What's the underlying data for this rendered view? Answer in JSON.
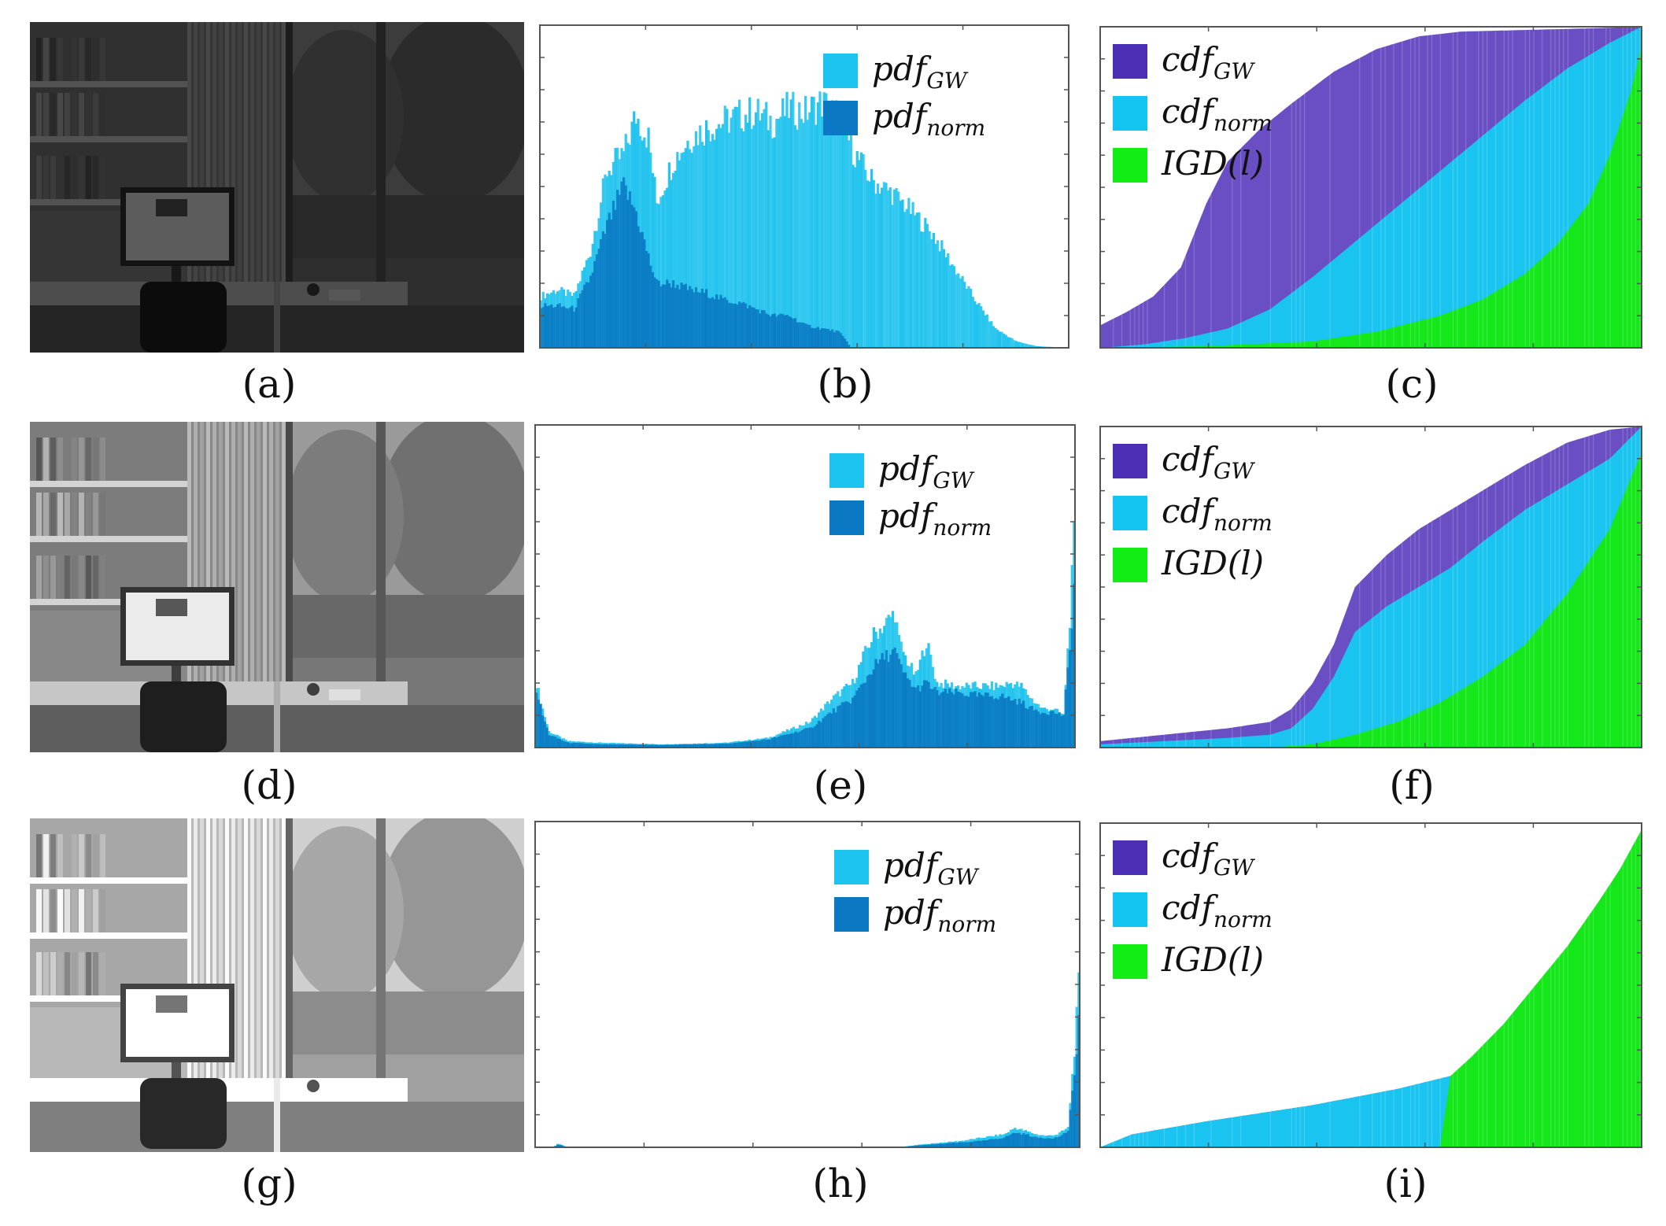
{
  "figure": {
    "panel_labels": [
      "(a)",
      "(b)",
      "(c)",
      "(d)",
      "(e)",
      "(f)",
      "(g)",
      "(h)",
      "(i)"
    ],
    "legend_pdf": [
      {
        "main": "pdf",
        "sub": "GW",
        "color": "#1ec4f0"
      },
      {
        "main": "pdf",
        "sub": "norm",
        "color": "#0a78c2"
      }
    ],
    "legend_cdf": [
      {
        "main": "cdf",
        "sub": "GW",
        "color": "#4b2eb4"
      },
      {
        "main": "cdf",
        "sub": "norm",
        "color": "#14c5f2"
      },
      {
        "main": "IGD(l)",
        "sub": "",
        "color": "#12ee14"
      }
    ],
    "colors": {
      "pdf_gw": "#20c3ee",
      "pdf_norm": "#0b7cc4",
      "cdf_gw": "#6a4fc4",
      "cdf_norm": "#19c4f0",
      "igd": "#14e81a",
      "axis": "#555555"
    },
    "photos": [
      {
        "name": "dark-photo",
        "brightness": 0.28
      },
      {
        "name": "normal-photo",
        "brightness": 0.72
      },
      {
        "name": "bright-photo",
        "brightness": 0.97
      }
    ]
  },
  "chart_data": [
    {
      "type": "bar",
      "panel": "(b)",
      "xlim": [
        0,
        255
      ],
      "ylim": [
        0,
        1
      ],
      "series": [
        {
          "name": "pdf_GW",
          "x": [
            0,
            8,
            16,
            24,
            32,
            40,
            46,
            52,
            56,
            64,
            72,
            80,
            88,
            96,
            104,
            112,
            120,
            128,
            136,
            144,
            152,
            160,
            170,
            180,
            190,
            200,
            210,
            220,
            230,
            240,
            255
          ],
          "values": [
            0.16,
            0.18,
            0.16,
            0.3,
            0.55,
            0.6,
            0.72,
            0.65,
            0.45,
            0.58,
            0.65,
            0.68,
            0.7,
            0.72,
            0.73,
            0.7,
            0.74,
            0.73,
            0.76,
            0.72,
            0.6,
            0.52,
            0.48,
            0.42,
            0.35,
            0.25,
            0.15,
            0.06,
            0.02,
            0.005,
            0.0
          ]
        },
        {
          "name": "pdf_norm",
          "x": [
            0,
            8,
            16,
            24,
            32,
            40,
            46,
            52,
            56,
            64,
            72,
            80,
            88,
            96,
            104,
            112,
            120,
            128,
            136,
            144,
            148,
            150,
            255
          ],
          "values": [
            0.13,
            0.13,
            0.12,
            0.22,
            0.38,
            0.5,
            0.42,
            0.28,
            0.2,
            0.2,
            0.18,
            0.17,
            0.15,
            0.14,
            0.12,
            0.1,
            0.1,
            0.07,
            0.06,
            0.05,
            0.02,
            0.0,
            0.0
          ]
        }
      ]
    },
    {
      "type": "area",
      "panel": "(c)",
      "xlim": [
        0,
        255
      ],
      "ylim": [
        0,
        1
      ],
      "series": [
        {
          "name": "cdf_GW",
          "x": [
            0,
            12,
            25,
            38,
            50,
            60,
            75,
            90,
            110,
            130,
            150,
            170,
            200,
            230,
            255
          ],
          "values": [
            0.07,
            0.11,
            0.16,
            0.25,
            0.45,
            0.58,
            0.68,
            0.76,
            0.86,
            0.93,
            0.97,
            0.985,
            0.99,
            0.995,
            1.0
          ]
        },
        {
          "name": "cdf_norm",
          "x": [
            0,
            20,
            40,
            60,
            80,
            100,
            120,
            140,
            160,
            180,
            200,
            220,
            240,
            255
          ],
          "values": [
            0.0,
            0.01,
            0.03,
            0.06,
            0.12,
            0.22,
            0.33,
            0.44,
            0.55,
            0.66,
            0.77,
            0.87,
            0.95,
            1.0
          ]
        },
        {
          "name": "IGD(l)",
          "x": [
            0,
            50,
            100,
            130,
            160,
            180,
            200,
            215,
            230,
            240,
            250,
            255
          ],
          "values": [
            0.0,
            0.005,
            0.02,
            0.05,
            0.1,
            0.15,
            0.23,
            0.32,
            0.45,
            0.6,
            0.8,
            0.94
          ]
        }
      ]
    },
    {
      "type": "bar",
      "panel": "(e)",
      "xlim": [
        0,
        255
      ],
      "ylim": [
        0,
        1
      ],
      "series": [
        {
          "name": "pdf_GW",
          "x": [
            0,
            3,
            6,
            15,
            30,
            60,
            90,
            110,
            130,
            140,
            150,
            155,
            160,
            165,
            170,
            172,
            175,
            180,
            185,
            190,
            200,
            210,
            220,
            225,
            230,
            235,
            240,
            245,
            250,
            253,
            255
          ],
          "values": [
            0.2,
            0.12,
            0.05,
            0.02,
            0.015,
            0.01,
            0.015,
            0.03,
            0.08,
            0.15,
            0.2,
            0.28,
            0.35,
            0.38,
            0.42,
            0.33,
            0.28,
            0.22,
            0.33,
            0.2,
            0.19,
            0.19,
            0.19,
            0.2,
            0.19,
            0.15,
            0.12,
            0.12,
            0.1,
            0.4,
            0.65
          ]
        },
        {
          "name": "pdf_norm",
          "x": [
            0,
            3,
            6,
            15,
            30,
            60,
            90,
            110,
            130,
            140,
            150,
            155,
            160,
            165,
            170,
            172,
            175,
            180,
            185,
            190,
            200,
            210,
            220,
            225,
            230,
            235,
            240,
            245,
            250,
            253,
            255
          ],
          "values": [
            0.18,
            0.1,
            0.04,
            0.015,
            0.01,
            0.008,
            0.012,
            0.025,
            0.06,
            0.11,
            0.15,
            0.2,
            0.25,
            0.28,
            0.3,
            0.26,
            0.22,
            0.18,
            0.2,
            0.17,
            0.17,
            0.16,
            0.16,
            0.15,
            0.14,
            0.12,
            0.11,
            0.11,
            0.1,
            0.3,
            0.5
          ]
        }
      ]
    },
    {
      "type": "area",
      "panel": "(f)",
      "xlim": [
        0,
        255
      ],
      "ylim": [
        0,
        1
      ],
      "series": [
        {
          "name": "cdf_GW",
          "x": [
            0,
            30,
            60,
            80,
            90,
            100,
            110,
            120,
            135,
            150,
            165,
            180,
            200,
            220,
            240,
            255
          ],
          "values": [
            0.02,
            0.04,
            0.06,
            0.08,
            0.12,
            0.2,
            0.32,
            0.5,
            0.6,
            0.68,
            0.74,
            0.8,
            0.88,
            0.95,
            0.99,
            1.0
          ]
        },
        {
          "name": "cdf_norm",
          "x": [
            0,
            30,
            60,
            80,
            90,
            100,
            110,
            120,
            135,
            150,
            165,
            180,
            200,
            220,
            240,
            255
          ],
          "values": [
            0.01,
            0.02,
            0.03,
            0.04,
            0.06,
            0.12,
            0.22,
            0.36,
            0.44,
            0.5,
            0.56,
            0.64,
            0.74,
            0.82,
            0.9,
            1.0
          ]
        },
        {
          "name": "IGD(l)",
          "x": [
            0,
            80,
            100,
            120,
            140,
            160,
            180,
            200,
            220,
            240,
            255
          ],
          "values": [
            0.0,
            0.0,
            0.01,
            0.04,
            0.08,
            0.14,
            0.22,
            0.32,
            0.48,
            0.68,
            0.92
          ]
        }
      ]
    },
    {
      "type": "bar",
      "panel": "(h)",
      "xlim": [
        0,
        255
      ],
      "ylim": [
        0,
        1
      ],
      "series": [
        {
          "name": "pdf_GW",
          "x": [
            0,
            8,
            10,
            12,
            14,
            20,
            170,
            180,
            200,
            210,
            220,
            225,
            230,
            235,
            240,
            245,
            250,
            253,
            255
          ],
          "values": [
            0.0,
            0.0,
            0.01,
            0.008,
            0.0,
            0.0,
            0.0,
            0.008,
            0.02,
            0.03,
            0.04,
            0.06,
            0.05,
            0.04,
            0.035,
            0.04,
            0.06,
            0.3,
            0.5
          ]
        },
        {
          "name": "pdf_norm",
          "x": [
            0,
            8,
            10,
            12,
            14,
            20,
            170,
            180,
            200,
            210,
            220,
            225,
            230,
            235,
            240,
            245,
            250,
            253,
            255
          ],
          "values": [
            0.0,
            0.0,
            0.008,
            0.006,
            0.0,
            0.0,
            0.0,
            0.006,
            0.015,
            0.02,
            0.03,
            0.045,
            0.04,
            0.03,
            0.028,
            0.03,
            0.05,
            0.22,
            0.4
          ]
        }
      ]
    },
    {
      "type": "area",
      "panel": "(i)",
      "xlim": [
        0,
        255
      ],
      "ylim": [
        0,
        1
      ],
      "series": [
        {
          "name": "cdf_GW",
          "x": [
            0,
            15,
            50,
            100,
            140,
            165,
            190,
            210,
            230,
            240,
            250,
            255
          ],
          "values": [
            0.0,
            0.04,
            0.08,
            0.13,
            0.18,
            0.22,
            0.32,
            0.44,
            0.58,
            0.64,
            0.68,
            0.7
          ]
        },
        {
          "name": "cdf_norm",
          "x": [
            0,
            15,
            50,
            100,
            140,
            165,
            190,
            210,
            230,
            240,
            250,
            255
          ],
          "values": [
            0.0,
            0.04,
            0.08,
            0.13,
            0.18,
            0.22,
            0.32,
            0.44,
            0.56,
            0.6,
            0.64,
            0.68
          ]
        },
        {
          "name": "IGD(l)",
          "x": [
            0,
            160,
            165,
            175,
            190,
            205,
            220,
            235,
            245,
            255
          ],
          "values": [
            0.0,
            0.0,
            0.22,
            0.28,
            0.38,
            0.5,
            0.62,
            0.76,
            0.86,
            0.98
          ]
        }
      ]
    }
  ]
}
